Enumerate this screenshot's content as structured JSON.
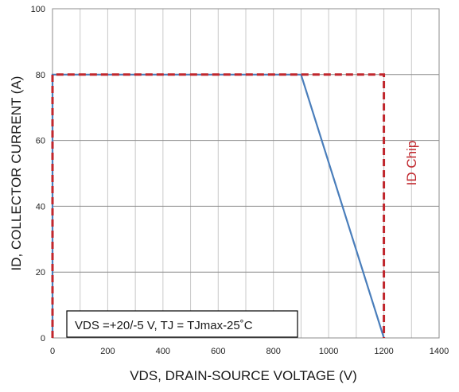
{
  "chart_data": {
    "type": "line",
    "xlabel": "VDS, DRAIN-SOURCE VOLTAGE (V)",
    "ylabel": "ID, COLLECTOR CURRENT (A)",
    "xlim": [
      0,
      1400
    ],
    "ylim": [
      0,
      100
    ],
    "x_ticks": [
      0,
      200,
      400,
      600,
      800,
      1000,
      1200,
      1400
    ],
    "y_ticks": [
      0,
      20,
      40,
      60,
      80,
      100
    ],
    "grid": true,
    "annotation": "VDS =+20/-5 V, TJ = TJmax-25˚C",
    "series": [
      {
        "name": "",
        "color": "#4a7ebb",
        "style": "solid",
        "x": [
          0,
          0,
          900,
          1200
        ],
        "y": [
          0,
          80,
          80,
          0
        ]
      },
      {
        "name": "ID Chip",
        "color": "#c0262c",
        "style": "dashed",
        "x": [
          0,
          0,
          1200,
          1200
        ],
        "y": [
          0,
          80,
          80,
          0
        ]
      }
    ]
  }
}
